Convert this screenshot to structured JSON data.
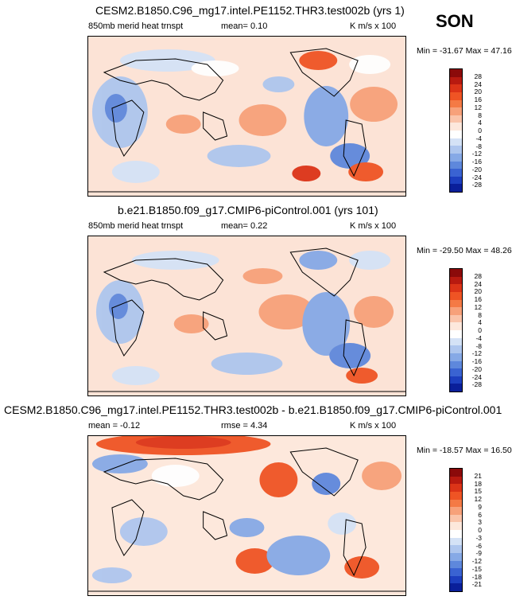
{
  "season": "SON",
  "panels": [
    {
      "title": "CESM2.B1850.C96_mg17.intel.PE1152.THR3.test002b (yrs 1)",
      "left_label": "850mb merid heat trnspt",
      "center_label": "mean=   0.10",
      "right_label": "K m/s x 100",
      "minmax": "Min = -31.67 Max =  47.16",
      "levels": [
        "28",
        "24",
        "20",
        "16",
        "12",
        "8",
        "4",
        "0",
        "-4",
        "-8",
        "-12",
        "-16",
        "-20",
        "-24",
        "-28"
      ],
      "colors": [
        "#8b0a0a",
        "#b81a10",
        "#dc3418",
        "#ef5424",
        "#f47a45",
        "#f7a17a",
        "#fac4aa",
        "#fde8dc",
        "#ffffff",
        "#d4e2f6",
        "#aec6ee",
        "#86a9e6",
        "#5e88dc",
        "#3a63d2",
        "#1d3fbf",
        "#0a1f9a"
      ]
    },
    {
      "title": "b.e21.B1850.f09_g17.CMIP6-piControl.001 (yrs 101)",
      "left_label": "850mb merid heat trnspt",
      "center_label": "mean=   0.22",
      "right_label": "K m/s x 100",
      "minmax": "Min = -29.50 Max =  48.26",
      "levels": [
        "28",
        "24",
        "20",
        "16",
        "12",
        "8",
        "4",
        "0",
        "-4",
        "-8",
        "-12",
        "-16",
        "-20",
        "-24",
        "-28"
      ],
      "colors": [
        "#8b0a0a",
        "#b81a10",
        "#dc3418",
        "#ef5424",
        "#f47a45",
        "#f7a17a",
        "#fac4aa",
        "#fde8dc",
        "#ffffff",
        "#d4e2f6",
        "#aec6ee",
        "#86a9e6",
        "#5e88dc",
        "#3a63d2",
        "#1d3fbf",
        "#0a1f9a"
      ]
    },
    {
      "title": "CESM2.B1850.C96_mg17.intel.PE1152.THR3.test002b - b.e21.B1850.f09_g17.CMIP6-piControl.001",
      "left_label": "mean =  -0.12",
      "center_label": "rmse =   4.34",
      "right_label": "K m/s x 100",
      "minmax": "Min = -18.57 Max =  16.50",
      "levels": [
        "21",
        "18",
        "15",
        "12",
        "9",
        "6",
        "3",
        "0",
        "-3",
        "-6",
        "-9",
        "-12",
        "-15",
        "-18",
        "-21"
      ],
      "colors": [
        "#8b0a0a",
        "#b81a10",
        "#dc3418",
        "#ef5424",
        "#f47a45",
        "#f7a17a",
        "#fac4aa",
        "#fde8dc",
        "#ffffff",
        "#d4e2f6",
        "#aec6ee",
        "#86a9e6",
        "#5e88dc",
        "#3a63d2",
        "#1d3fbf",
        "#0a1f9a"
      ]
    }
  ],
  "chart_data": [
    {
      "type": "heatmap",
      "title": "CESM2.B1850.C96_mg17.intel.PE1152.THR3.test002b (yrs 1)",
      "variable": "850mb merid heat trnspt",
      "units": "K m/s x 100",
      "mean": 0.1,
      "min": -31.67,
      "max": 47.16,
      "contour_levels": [
        -28,
        -24,
        -20,
        -16,
        -12,
        -8,
        -4,
        0,
        4,
        8,
        12,
        16,
        20,
        24,
        28
      ]
    },
    {
      "type": "heatmap",
      "title": "b.e21.B1850.f09_g17.CMIP6-piControl.001 (yrs 101)",
      "variable": "850mb merid heat trnspt",
      "units": "K m/s x 100",
      "mean": 0.22,
      "min": -29.5,
      "max": 48.26,
      "contour_levels": [
        -28,
        -24,
        -20,
        -16,
        -12,
        -8,
        -4,
        0,
        4,
        8,
        12,
        16,
        20,
        24,
        28
      ]
    },
    {
      "type": "heatmap",
      "title": "CESM2.B1850.C96_mg17.intel.PE1152.THR3.test002b - b.e21.B1850.f09_g17.CMIP6-piControl.001",
      "units": "K m/s x 100",
      "mean": -0.12,
      "rmse": 4.34,
      "min": -18.57,
      "max": 16.5,
      "contour_levels": [
        -21,
        -18,
        -15,
        -12,
        -9,
        -6,
        -3,
        0,
        3,
        6,
        9,
        12,
        15,
        18,
        21
      ]
    }
  ]
}
